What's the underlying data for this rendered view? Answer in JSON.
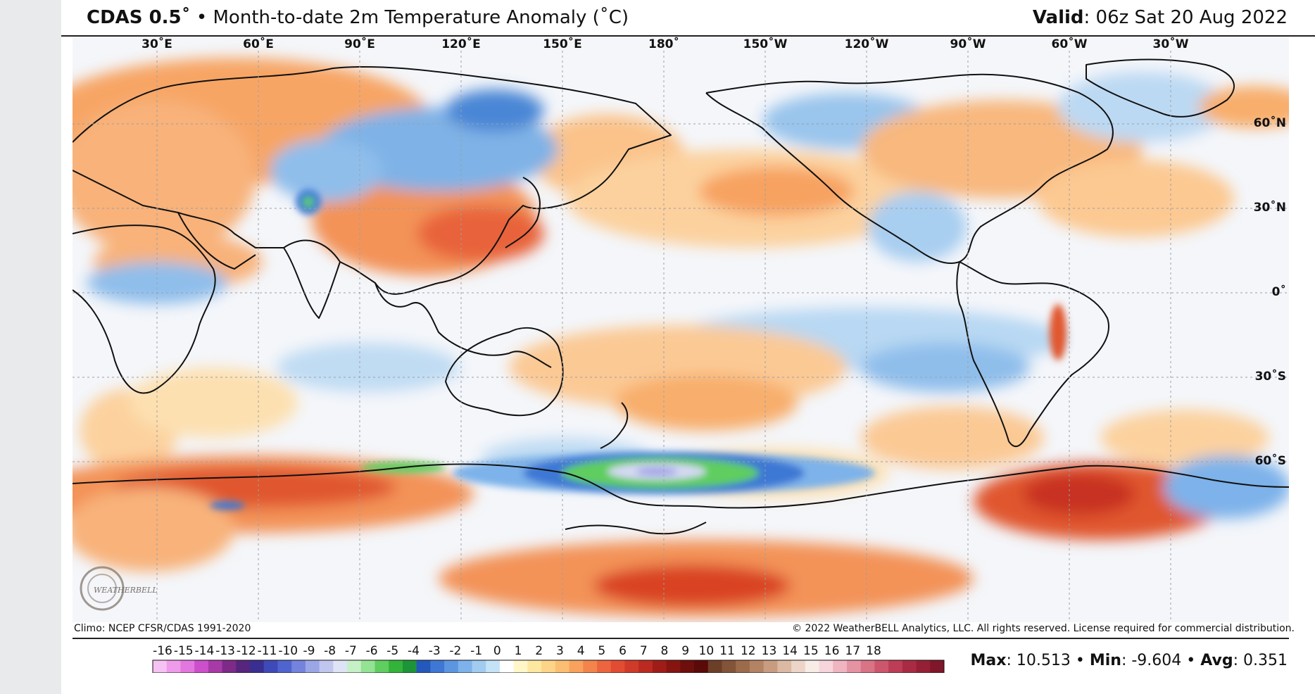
{
  "header": {
    "model": "CDAS 0.5˚",
    "separator": "•",
    "title": "Month-to-date 2m Temperature Anomaly (˚C)",
    "valid_label": "Valid",
    "valid_value": ": 06z Sat 20 Aug 2022"
  },
  "map": {
    "lon_labels": [
      "30˚E",
      "60˚E",
      "90˚E",
      "120˚E",
      "150˚E",
      "180˚",
      "150˚W",
      "120˚W",
      "90˚W",
      "60˚W",
      "30˚W"
    ],
    "lat_labels": [
      "60˚N",
      "30˚N",
      "0˚",
      "30˚S",
      "60˚S"
    ],
    "logo_text": "WEATHERBELL"
  },
  "credits": {
    "climo": "Climo: NCEP CFSR/CDAS 1991-2020",
    "copyright": "© 2022 WeatherBELL Analytics, LLC. All rights reserved. License required for commercial distribution."
  },
  "legend": {
    "ticks": [
      "-16",
      "-15",
      "-14",
      "-13",
      "-12",
      "-11",
      "-10",
      "-9",
      "-8",
      "-7",
      "-6",
      "-5",
      "-4",
      "-3",
      "-2",
      "-1",
      "0",
      "1",
      "2",
      "3",
      "4",
      "5",
      "6",
      "7",
      "8",
      "9",
      "10",
      "11",
      "12",
      "13",
      "14",
      "15",
      "16",
      "17",
      "18"
    ],
    "colors": [
      "#f6c2f3",
      "#ee9bea",
      "#e277e0",
      "#cc4fcc",
      "#a83aa8",
      "#7d2a88",
      "#56257d",
      "#3a2f90",
      "#3f49b8",
      "#5064cf",
      "#7483dd",
      "#9ba6e6",
      "#c0c6ee",
      "#dfe3f6",
      "#c6f0c6",
      "#94e294",
      "#5fcd5f",
      "#33b33a",
      "#1e9438",
      "#2458bb",
      "#3e78d4",
      "#5c96e0",
      "#7db2ea",
      "#a1ccf0",
      "#c5e3f6",
      "#ffffff",
      "#fff7c8",
      "#fee7a0",
      "#fdd488",
      "#fbbe72",
      "#f8a25e",
      "#f3844c",
      "#ec653e",
      "#e24c32",
      "#d03a28",
      "#bb2a20",
      "#a01c18",
      "#861410",
      "#6d0f0c",
      "#5a0a08",
      "#6c3f28",
      "#845438",
      "#9c6b4c",
      "#b38363",
      "#c89c80",
      "#dcb9a3",
      "#ecd5c8",
      "#f7ece6",
      "#f7d5dc",
      "#efb5c0",
      "#e593a3",
      "#d97386",
      "#cc566c",
      "#bc3d55",
      "#a92b43",
      "#952035",
      "#7f1629"
    ]
  },
  "stats": {
    "max_label": "Max",
    "max_value": ": 10.513",
    "sep1": "•",
    "min_label": "Min",
    "min_value": ": -9.604",
    "sep2": "•",
    "avg_label": "Avg",
    "avg_value": ": 0.351"
  }
}
